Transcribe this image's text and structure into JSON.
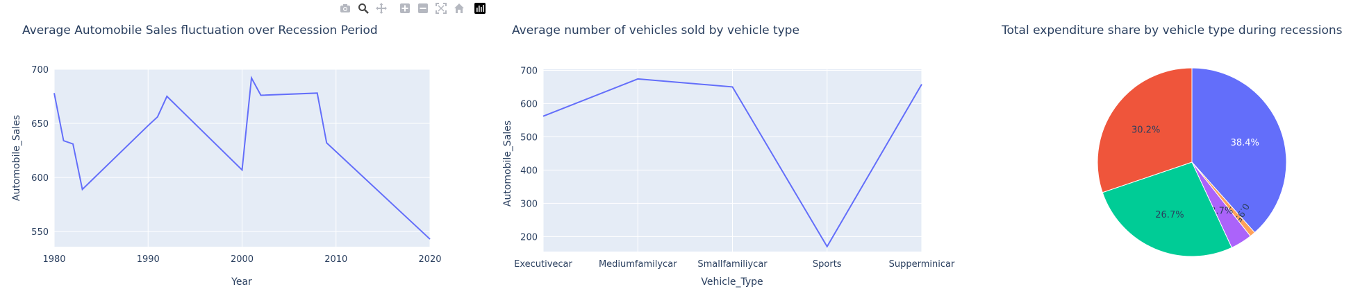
{
  "modebar": {
    "buttons": [
      {
        "name": "camera-icon"
      },
      {
        "name": "zoom-icon"
      },
      {
        "name": "pan-icon"
      },
      {
        "name": "zoom-in-icon"
      },
      {
        "name": "zoom-out-icon"
      },
      {
        "name": "autoscale-icon"
      },
      {
        "name": "home-icon"
      },
      {
        "name": "plotly-logo-icon"
      }
    ]
  },
  "chart_data": [
    {
      "type": "line",
      "title": "Average Automobile Sales fluctuation over Recession Period",
      "xlabel": "Year",
      "ylabel": "Automobile_Sales",
      "x": [
        1980,
        1981,
        1982,
        1983,
        1990,
        1991,
        1992,
        2000,
        2001,
        2002,
        2008,
        2009,
        2020
      ],
      "y": [
        678,
        634,
        631,
        589,
        648,
        656,
        675,
        607,
        692,
        676,
        678,
        632,
        543
      ],
      "xlim": [
        1980,
        2020
      ],
      "ylim": [
        536,
        700
      ],
      "xticks": [
        "1980",
        "1990",
        "2000",
        "2010",
        "2020"
      ],
      "yticks": [
        "550",
        "600",
        "650",
        "700"
      ],
      "line_color": "#636efa",
      "plot_bg": "#e5ecf6",
      "grid": true
    },
    {
      "type": "line",
      "title": "Average number of vehicles sold by vehicle type",
      "xlabel": "Vehicle_Type",
      "ylabel": "Automobile_Sales",
      "categories": [
        "Executivecar",
        "Mediumfamilycar",
        "Smallfamiliycar",
        "Sports",
        "Supperminicar"
      ],
      "values": [
        562,
        674,
        650,
        170,
        658
      ],
      "ylim": [
        155,
        703
      ],
      "yticks": [
        "200",
        "300",
        "400",
        "500",
        "600",
        "700"
      ],
      "line_color": "#636efa",
      "plot_bg": "#e5ecf6",
      "grid": true
    },
    {
      "type": "pie",
      "title": "Total expenditure share by vehicle type during recessions",
      "slices": [
        {
          "label": "38.4%",
          "value": 38.4,
          "color": "#636efa"
        },
        {
          "label": "0.954%",
          "value": 0.954,
          "color": "#ffa15a"
        },
        {
          "label": "3.7%",
          "value": 3.7,
          "color": "#ab63fa"
        },
        {
          "label": "26.7%",
          "value": 26.7,
          "color": "#00cc96"
        },
        {
          "label": "30.2%",
          "value": 30.2,
          "color": "#ef553b"
        }
      ]
    }
  ]
}
